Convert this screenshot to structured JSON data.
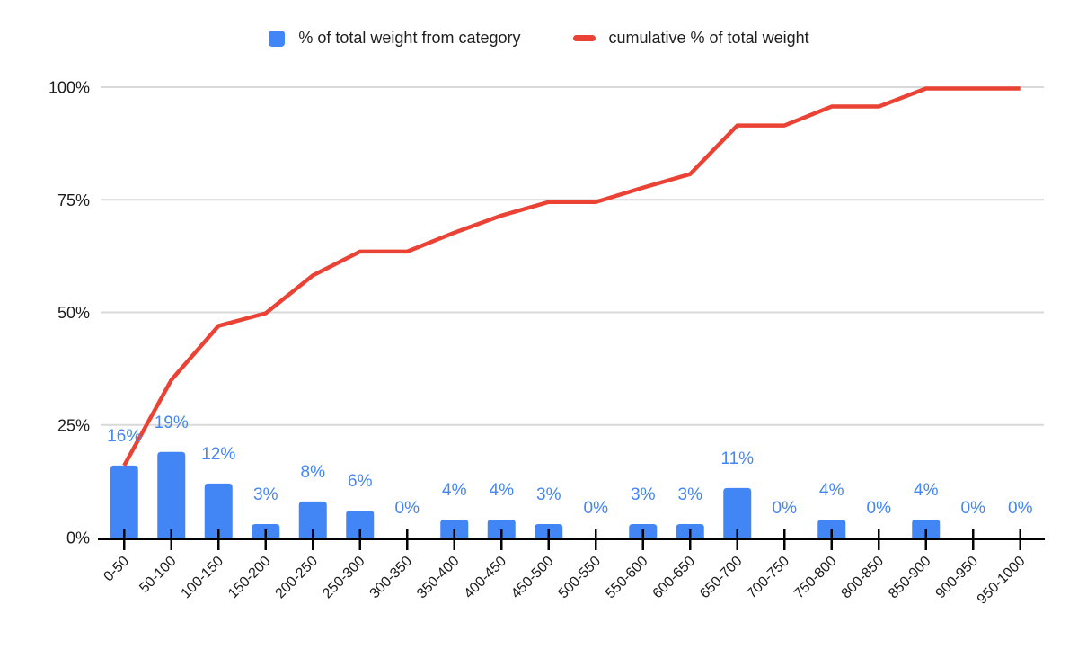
{
  "legend": {
    "bars_label": "% of total weight from category",
    "line_label": "cumulative % of total weight"
  },
  "colors": {
    "bar": "#4285F4",
    "line": "#EA4335",
    "data_label": "#4285F4",
    "grid": "#D9D9D9",
    "axis": "#000000",
    "tick_text": "#1c1c1c",
    "background": "#ffffff"
  },
  "chart_data": {
    "type": "bar",
    "subtype": "pareto-bar-with-cumulative-line",
    "title": "",
    "xlabel": "",
    "ylabel": "",
    "ylim": [
      0,
      100
    ],
    "grid": true,
    "legend_position": "top-center",
    "y_ticks": [
      {
        "value": 0,
        "label": "0%"
      },
      {
        "value": 25,
        "label": "25%"
      },
      {
        "value": 50,
        "label": "50%"
      },
      {
        "value": 75,
        "label": "75%"
      },
      {
        "value": 100,
        "label": "100%"
      }
    ],
    "categories": [
      "0-50",
      "50-100",
      "100-150",
      "150-200",
      "200-250",
      "250-300",
      "300-350",
      "350-400",
      "400-450",
      "450-500",
      "500-550",
      "550-600",
      "600-650",
      "650-700",
      "700-750",
      "750-800",
      "800-850",
      "850-900",
      "900-950",
      "950-1000"
    ],
    "series": [
      {
        "name": "% of total weight from category",
        "type": "bar",
        "values": [
          16,
          19,
          12,
          3,
          8,
          6,
          0,
          4,
          4,
          3,
          0,
          3,
          3,
          11,
          0,
          4,
          0,
          4,
          0,
          0
        ],
        "labels": [
          "16%",
          "19%",
          "12%",
          "3%",
          "8%",
          "6%",
          "0%",
          "4%",
          "4%",
          "3%",
          "0%",
          "3%",
          "3%",
          "11%",
          "0%",
          "4%",
          "0%",
          "4%",
          "0%",
          "0%"
        ]
      },
      {
        "name": "cumulative % of total weight",
        "type": "line",
        "values": [
          16,
          35,
          47,
          49.8,
          58.2,
          63.5,
          63.5,
          67.7,
          71.5,
          74.5,
          74.5,
          77.7,
          80.7,
          91.5,
          91.5,
          95.7,
          95.7,
          99.7,
          99.7,
          99.7
        ]
      }
    ]
  }
}
